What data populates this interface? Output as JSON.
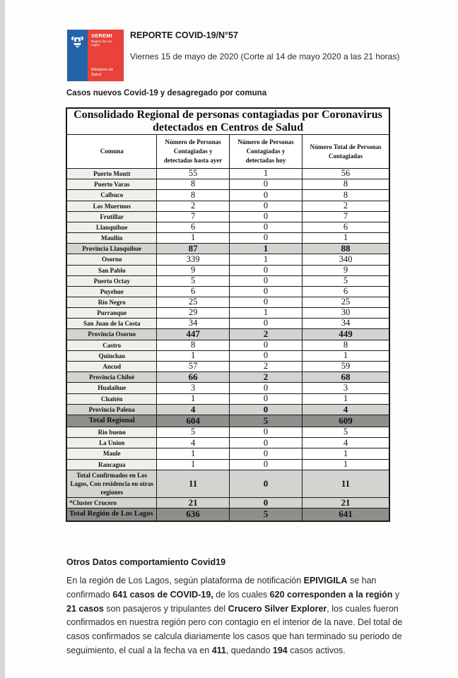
{
  "header": {
    "logo": {
      "seremi_title": "SEREMI",
      "seremi_sub": "Región de Los Lagos",
      "ministry": "Ministerio de Salud",
      "blue": "#2563a8",
      "red": "#e8423b"
    },
    "title": "REPORTE COVID-19/N°57",
    "date_line": "Viernes 15 de mayo de 2020 (Corte al 14 de mayo 2020 a las 21 horas)"
  },
  "section_title": "Casos nuevos Covid-19 y desagregado por comuna",
  "table": {
    "title": "Consolidado Regional de personas contagiadas por Coronavirus detectados en Centros de Salud",
    "columns": [
      "Comuna",
      "Número de Personas Contagiadas y detectadas hasta ayer",
      "Número de Personas Contagiadas y  detectadas hoy",
      "Número Total de Personas Contagiadas"
    ],
    "rows": [
      {
        "comuna": "Puerto Montt",
        "ayer": "55",
        "hoy": "1",
        "total": "56",
        "type": "normal"
      },
      {
        "comuna": "Puerto Varas",
        "ayer": "8",
        "hoy": "0",
        "total": "8",
        "type": "normal"
      },
      {
        "comuna": "Calbuco",
        "ayer": "8",
        "hoy": "0",
        "total": "8",
        "type": "normal"
      },
      {
        "comuna": "Los Muermos",
        "ayer": "2",
        "hoy": "0",
        "total": "2",
        "type": "normal"
      },
      {
        "comuna": "Frutillar",
        "ayer": "7",
        "hoy": "0",
        "total": "7",
        "type": "normal"
      },
      {
        "comuna": "Llanquihue",
        "ayer": "6",
        "hoy": "0",
        "total": "6",
        "type": "normal"
      },
      {
        "comuna": "Maullín",
        "ayer": "1",
        "hoy": "0",
        "total": "1",
        "type": "normal"
      },
      {
        "comuna": "Provincia Llanquihue",
        "ayer": "87",
        "hoy": "1",
        "total": "88",
        "type": "subtotal"
      },
      {
        "comuna": "Osorno",
        "ayer": "339",
        "hoy": "1",
        "total": "340",
        "type": "normal"
      },
      {
        "comuna": "San Pablo",
        "ayer": "9",
        "hoy": "0",
        "total": "9",
        "type": "normal"
      },
      {
        "comuna": "Puerto Octay",
        "ayer": "5",
        "hoy": "0",
        "total": "5",
        "type": "normal"
      },
      {
        "comuna": "Puyehue",
        "ayer": "6",
        "hoy": "0",
        "total": "6",
        "type": "normal"
      },
      {
        "comuna": "Río Negro",
        "ayer": "25",
        "hoy": "0",
        "total": "25",
        "type": "normal"
      },
      {
        "comuna": "Purranque",
        "ayer": "29",
        "hoy": "1",
        "total": "30",
        "type": "normal"
      },
      {
        "comuna": "San Juan de la Costa",
        "ayer": "34",
        "hoy": "0",
        "total": "34",
        "type": "normal"
      },
      {
        "comuna": "Provincia Osorno",
        "ayer": "447",
        "hoy": "2",
        "total": "449",
        "type": "subtotal"
      },
      {
        "comuna": "Castro",
        "ayer": "8",
        "hoy": "0",
        "total": "8",
        "type": "normal"
      },
      {
        "comuna": "Quinchao",
        "ayer": "1",
        "hoy": "0",
        "total": "1",
        "type": "normal"
      },
      {
        "comuna": "Ancud",
        "ayer": "57",
        "hoy": "2",
        "total": "59",
        "type": "normal"
      },
      {
        "comuna": "Provincia Chiloé",
        "ayer": "66",
        "hoy": "2",
        "total": "68",
        "type": "subtotal"
      },
      {
        "comuna": "Hualaihue",
        "ayer": "3",
        "hoy": "0",
        "total": "3",
        "type": "normal"
      },
      {
        "comuna": "Chaitén",
        "ayer": "1",
        "hoy": "0",
        "total": "1",
        "type": "normal"
      },
      {
        "comuna": "Provincia Palena",
        "ayer": "4",
        "hoy": "0",
        "total": "4",
        "type": "subtotal"
      },
      {
        "comuna": "Total Regional",
        "ayer": "604",
        "hoy": "5",
        "total": "609",
        "type": "total"
      },
      {
        "comuna": "Rio bueno",
        "ayer": "5",
        "hoy": "0",
        "total": "5",
        "type": "normal"
      },
      {
        "comuna": "La Union",
        "ayer": "4",
        "hoy": "0",
        "total": "4",
        "type": "normal"
      },
      {
        "comuna": "Maule",
        "ayer": "1",
        "hoy": "0",
        "total": "1",
        "type": "normal"
      },
      {
        "comuna": "Rancagua",
        "ayer": "1",
        "hoy": "0",
        "total": "1",
        "type": "normal"
      },
      {
        "comuna": "Total Confirmados en Los Lagos, Con residencia en otras regiones",
        "ayer": "11",
        "hoy": "0",
        "total": "11",
        "type": "subtotal"
      },
      {
        "comuna": "*Cluster Crucero",
        "ayer": "21",
        "hoy": "0",
        "total": "21",
        "type": "subtotal",
        "align": "left"
      },
      {
        "comuna": "Total  Región de Los Lagos",
        "ayer": "636",
        "hoy": "5",
        "total": "641",
        "type": "total",
        "align": "left"
      }
    ]
  },
  "others": {
    "heading": "Otros Datos comportamiento Covid19",
    "paragraph": [
      {
        "t": "En la región de Los Lagos, según plataforma de notificación ",
        "b": false
      },
      {
        "t": "EPIVIGILA",
        "b": true
      },
      {
        "t": " se han confirmado ",
        "b": false
      },
      {
        "t": "641 casos de COVID-19,",
        "b": true
      },
      {
        "t": " de los cuales ",
        "b": false
      },
      {
        "t": "620 corresponden a la región",
        "b": true
      },
      {
        "t": " y ",
        "b": false
      },
      {
        "t": "21 casos",
        "b": true
      },
      {
        "t": " son pasajeros y tripulantes del ",
        "b": false
      },
      {
        "t": "Crucero Silver Explorer",
        "b": true
      },
      {
        "t": ", los cuales fueron confirmados en nuestra región pero con contagio en el interior de la nave. Del total de casos confirmados se calcula diariamente los casos que han terminado su periodo de seguimiento, el cual a la fecha va en ",
        "b": false
      },
      {
        "t": "411",
        "b": true
      },
      {
        "t": ", quedando ",
        "b": false
      },
      {
        "t": "194",
        "b": true
      },
      {
        "t": " casos activos.",
        "b": false
      }
    ]
  }
}
